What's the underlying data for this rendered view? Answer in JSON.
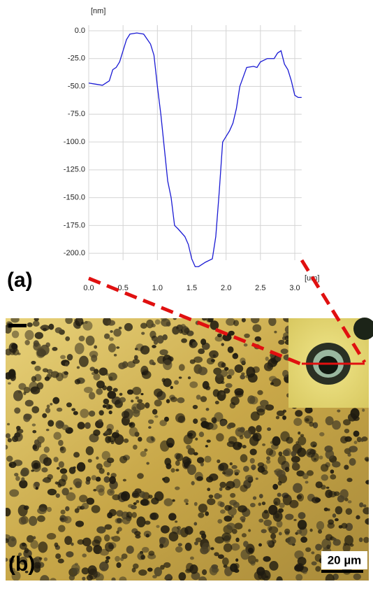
{
  "chart_data": {
    "type": "line",
    "x_label": "[um]",
    "y_label": "[nm]",
    "color": "#1a1ad4",
    "grid": true,
    "x": [
      0,
      0.1,
      0.2,
      0.3,
      0.35,
      0.4,
      0.45,
      0.5,
      0.55,
      0.6,
      0.7,
      0.8,
      0.9,
      0.95,
      1.0,
      1.05,
      1.1,
      1.15,
      1.2,
      1.25,
      1.3,
      1.4,
      1.45,
      1.5,
      1.55,
      1.6,
      1.7,
      1.8,
      1.85,
      1.9,
      1.95,
      2.0,
      2.05,
      2.1,
      2.15,
      2.2,
      2.3,
      2.4,
      2.45,
      2.5,
      2.6,
      2.7,
      2.75,
      2.8,
      2.85,
      2.9,
      2.95,
      3.0,
      3.05,
      3.1
    ],
    "values": [
      -47,
      -48,
      -49,
      -45,
      -35,
      -33,
      -28,
      -18,
      -8,
      -3,
      -2,
      -3,
      -12,
      -22,
      -50,
      -75,
      -105,
      -135,
      -150,
      -175,
      -178,
      -185,
      -192,
      -205,
      -212,
      -212,
      -208,
      -205,
      -185,
      -145,
      -100,
      -95,
      -90,
      -83,
      -70,
      -50,
      -33,
      -32,
      -33,
      -28,
      -25,
      -25,
      -20,
      -18,
      -30,
      -35,
      -45,
      -58,
      -60,
      -60
    ],
    "xlim": [
      0,
      3.1
    ],
    "ylim": [
      -215,
      5
    ],
    "xticks": [
      {
        "value": 0,
        "label": "0.0"
      },
      {
        "value": 0.5,
        "label": "0.5"
      },
      {
        "value": 1,
        "label": "1.0"
      },
      {
        "value": 1.5,
        "label": "1.5"
      },
      {
        "value": 2,
        "label": "2.0"
      },
      {
        "value": 2.5,
        "label": "2.5"
      },
      {
        "value": 3,
        "label": "3.0"
      }
    ],
    "yticks": [
      {
        "value": 0,
        "label": "0.0"
      },
      {
        "value": -25,
        "label": "-25.0"
      },
      {
        "value": -50,
        "label": "-50.0"
      },
      {
        "value": -75,
        "label": "-75.0"
      },
      {
        "value": -100,
        "label": "-100.0"
      },
      {
        "value": -125,
        "label": "-125.0"
      },
      {
        "value": -150,
        "label": "-150.0"
      },
      {
        "value": -175,
        "label": "-175.0"
      },
      {
        "value": -200,
        "label": "-200.0"
      }
    ]
  },
  "figure": {
    "panel_a": "(a)",
    "panel_b": "(b)",
    "scale_bar": "20 µm"
  }
}
